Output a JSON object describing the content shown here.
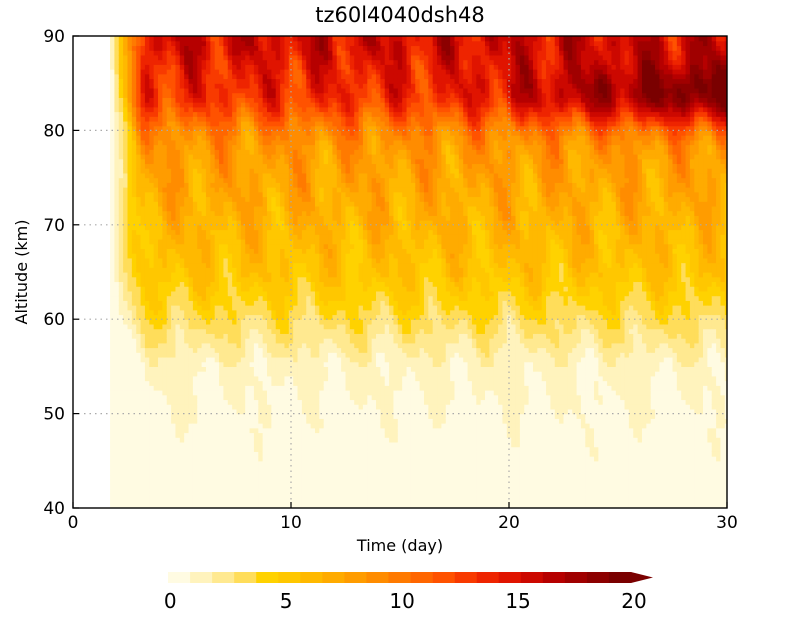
{
  "chart_data": {
    "type": "heatmap",
    "title": "tz60l4040dsh48",
    "xlabel": "Time (day)",
    "ylabel": "Altitude (km)",
    "xlim": [
      0,
      30
    ],
    "ylim": [
      40,
      90
    ],
    "x_ticks": [
      "0",
      "10",
      "20",
      "30"
    ],
    "y_ticks": [
      "40",
      "50",
      "60",
      "70",
      "80",
      "90"
    ],
    "grid": true,
    "data_start_day": 1.7,
    "colorbar": {
      "levels": [
        0,
        1,
        2,
        3,
        4,
        5,
        6,
        7,
        8,
        9,
        10,
        11,
        12,
        13,
        14,
        15,
        16,
        17,
        18,
        19,
        20
      ],
      "tick_labels": [
        "0",
        "5",
        "10",
        "15",
        "20"
      ],
      "colors": [
        "#fffbe2",
        "#fff3bd",
        "#ffe990",
        "#ffdd5a",
        "#ffd200",
        "#ffc700",
        "#ffb900",
        "#ffab00",
        "#ff9c00",
        "#ff8c00",
        "#ff7a00",
        "#ff6600",
        "#ff5200",
        "#f83a00",
        "#ee2400",
        "#e01400",
        "#cc0800",
        "#b60000",
        "#a00000",
        "#8c0000",
        "#7a0000"
      ],
      "extend": "max",
      "placement": "bottom"
    }
  }
}
